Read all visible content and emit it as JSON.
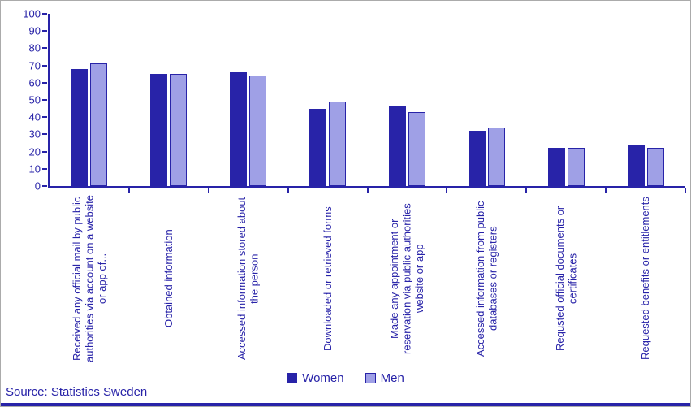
{
  "chart_data": {
    "type": "bar",
    "title": "",
    "categories": [
      "Received any official mail by public authorities via account on a website or app of...",
      "Obtained information",
      "Accessed information stored about the person",
      "Downloaded or retrieved forms",
      "Made any appointment or reservation via public authorities website or app",
      "Accessed information from public databases or registers",
      "Requsted official documents or certificates",
      "Requested benefits or entitlements"
    ],
    "series": [
      {
        "name": "Women",
        "color": "#2823a8",
        "values": [
          68,
          65,
          66,
          45,
          46,
          32,
          22,
          24
        ]
      },
      {
        "name": "Men",
        "color": "#9fa0e6",
        "values": [
          71,
          65,
          64,
          49,
          43,
          34,
          22,
          22
        ]
      }
    ],
    "ylim": [
      0,
      100
    ],
    "yticks": [
      0,
      10,
      20,
      30,
      40,
      50,
      60,
      70,
      80,
      90,
      100
    ],
    "grid": false,
    "legend_position": "bottom"
  },
  "source": {
    "text": "Source: Statistics Sweden"
  },
  "colors": {
    "accent": "#2823a8",
    "light_series": "#9fa0e6",
    "text": "#2823a8"
  }
}
